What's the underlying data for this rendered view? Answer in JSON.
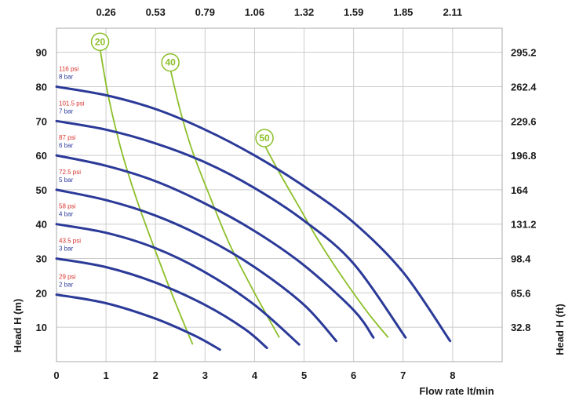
{
  "chart_data": {
    "type": "line",
    "title": "",
    "xlabel": "Flow rate  lt/min",
    "ylabel": "Head H (m)",
    "y2label": "Head H (ft)",
    "x_ticks": [
      "0",
      "1",
      "2",
      "3",
      "4",
      "5",
      "6",
      "7",
      "8"
    ],
    "x2_ticks": [
      "0.26",
      "0.53",
      "0.79",
      "1.06",
      "1.32",
      "1.59",
      "1.85",
      "2.11"
    ],
    "y_ticks": [
      "10",
      "20",
      "30",
      "40",
      "50",
      "60",
      "70",
      "80",
      "90"
    ],
    "y2_ticks": [
      "32.8",
      "65.6",
      "98.4",
      "131.2",
      "164",
      "196.8",
      "229.6",
      "262.4",
      "295.2"
    ],
    "xlim": [
      0,
      9
    ],
    "ylim": [
      0,
      97
    ],
    "grid": true,
    "colors": {
      "pressure_curve": "#2b3a98",
      "air_curve": "#8cbf2a",
      "psi_text": "#d8322b",
      "bar_text": "#2b3a98",
      "grid": "#cccccc"
    },
    "pressure_series": [
      {
        "psi": "116 psi",
        "bar": "8 bar",
        "x": [
          0,
          1,
          2,
          3,
          4,
          5,
          6,
          7,
          7.95
        ],
        "y": [
          80,
          77.5,
          73.5,
          67.5,
          60,
          51,
          40.5,
          26,
          6
        ]
      },
      {
        "psi": "101.5 psi",
        "bar": "7 bar",
        "x": [
          0,
          1,
          2,
          3,
          4,
          5,
          6,
          7.05
        ],
        "y": [
          70,
          67.5,
          63.5,
          58,
          50.5,
          41,
          28.5,
          7
        ]
      },
      {
        "psi": "87 psi",
        "bar": "6 bar",
        "x": [
          0,
          1,
          2,
          3,
          4,
          5,
          6,
          6.4
        ],
        "y": [
          60,
          57,
          52.5,
          46,
          38,
          28,
          15,
          7
        ]
      },
      {
        "psi": "72.5 psi",
        "bar": "5 bar",
        "x": [
          0,
          1,
          2,
          3,
          4,
          5,
          5.65
        ],
        "y": [
          50,
          47,
          42.5,
          36,
          27.5,
          16.5,
          6
        ]
      },
      {
        "psi": "58 psi",
        "bar": "4 bar",
        "x": [
          0,
          1,
          2,
          3,
          4,
          4.9
        ],
        "y": [
          40,
          37.5,
          33,
          26,
          16.5,
          5
        ]
      },
      {
        "psi": "43.5 psi",
        "bar": "3 bar",
        "x": [
          0,
          1,
          2,
          3,
          3.8,
          4.25
        ],
        "y": [
          30,
          27.5,
          23,
          16.5,
          9.5,
          4
        ]
      },
      {
        "psi": "29 psi",
        "bar": "2 bar",
        "x": [
          0,
          1,
          2,
          2.8,
          3.3
        ],
        "y": [
          19.5,
          17,
          12.5,
          7.5,
          3.5
        ]
      }
    ],
    "air_series": [
      {
        "label": "20",
        "x": [
          0.88,
          1.05,
          1.3,
          1.6,
          1.95,
          2.35,
          2.75
        ],
        "y": [
          91,
          77,
          62,
          48,
          34,
          19,
          5
        ]
      },
      {
        "label": "40",
        "x": [
          2.3,
          2.5,
          2.75,
          3.1,
          3.5,
          4.0,
          4.5
        ],
        "y": [
          85,
          73,
          61,
          48,
          34,
          20,
          7
        ]
      },
      {
        "label": "50",
        "x": [
          4.2,
          4.5,
          4.9,
          5.3,
          5.8,
          6.3,
          6.7
        ],
        "y": [
          63,
          55,
          45,
          35,
          24,
          14,
          7
        ]
      }
    ]
  }
}
